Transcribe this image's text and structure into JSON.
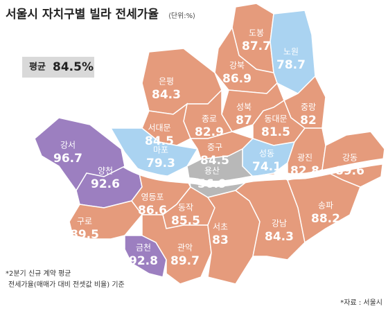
{
  "header": {
    "title": "서울시 자치구별 빌라 전세가율",
    "unit": "⟨단위:%⟩"
  },
  "average": {
    "label": "평균",
    "value": 84.5,
    "value_label": "84.5%"
  },
  "map": {
    "districts": [
      {
        "name": "도봉",
        "value": 87.7,
        "color": "#e59b7c"
      },
      {
        "name": "노원",
        "value": 78.7,
        "color": "#aad3f1"
      },
      {
        "name": "강북",
        "value": 86.9,
        "color": "#e59b7c"
      },
      {
        "name": "은평",
        "value": 84.3,
        "color": "#e59b7c"
      },
      {
        "name": "성북",
        "value": 87,
        "color": "#e59b7c"
      },
      {
        "name": "종로",
        "value": 82.9,
        "color": "#e59b7c"
      },
      {
        "name": "중랑",
        "value": 82,
        "color": "#e59b7c"
      },
      {
        "name": "동대문",
        "value": 81.5,
        "color": "#e59b7c"
      },
      {
        "name": "서대문",
        "value": 84.5,
        "color": "#e59b7c"
      },
      {
        "name": "마포",
        "value": 79.3,
        "color": "#aad3f1"
      },
      {
        "name": "중구",
        "value": 84.5,
        "color": "#e59b7c"
      },
      {
        "name": "성동",
        "value": 74.1,
        "color": "#aad3f1"
      },
      {
        "name": "광진",
        "value": 82.8,
        "color": "#e59b7c"
      },
      {
        "name": "강동",
        "value": 89.6,
        "color": "#e59b7c"
      },
      {
        "name": "용산",
        "value": 56.9,
        "color": "#b8b8b8"
      },
      {
        "name": "강서",
        "value": 96.7,
        "color": "#9c7fc0"
      },
      {
        "name": "양천",
        "value": 92.6,
        "color": "#9c7fc0"
      },
      {
        "name": "영등포",
        "value": 86.6,
        "color": "#e59b7c"
      },
      {
        "name": "동작",
        "value": 85.5,
        "color": "#e59b7c"
      },
      {
        "name": "구로",
        "value": 89.5,
        "color": "#e59b7c"
      },
      {
        "name": "금천",
        "value": 92.8,
        "color": "#9c7fc0"
      },
      {
        "name": "관악",
        "value": 89.7,
        "color": "#e59b7c"
      },
      {
        "name": "서초",
        "value": 83,
        "color": "#e59b7c"
      },
      {
        "name": "강남",
        "value": 84.3,
        "color": "#e59b7c"
      },
      {
        "name": "송파",
        "value": 88.2,
        "color": "#e59b7c"
      }
    ]
  },
  "notes": [
    "*2분기 신규 계약 평균",
    "전세가율(매매가 대비 전셋값 비율) 기준"
  ],
  "source": "*자료 : 서울시"
}
